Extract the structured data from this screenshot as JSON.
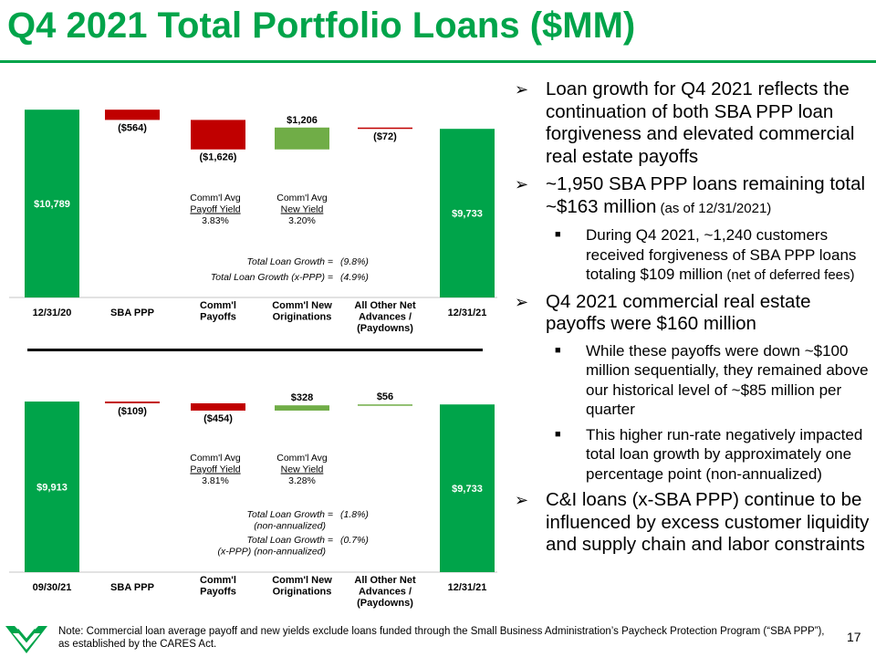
{
  "title": "Q4 2021 Total Portfolio Loans ($MM)",
  "colors": {
    "brand": "#00a44a",
    "total": "#00a44a",
    "increase": "#70ad47",
    "decrease": "#c00000"
  },
  "chart_data": [
    {
      "type": "waterfall",
      "categories": [
        "12/31/20",
        "SBA PPP",
        "Comm'l Payoffs",
        "Comm'l New Originations",
        "All Other Net Advances / (Paydowns)",
        "12/31/21"
      ],
      "values": [
        10789,
        -564,
        -1626,
        1206,
        -72,
        9733
      ],
      "kinds": [
        "total",
        "delta",
        "delta",
        "delta",
        "delta",
        "total"
      ],
      "data_labels": [
        "$10,789",
        "($564)",
        "($1,626)",
        "$1,206",
        "($72)",
        "$9,733"
      ],
      "ylim": [
        440,
        11000
      ],
      "annotations": {
        "payoff_yield": [
          "Comm'l Avg",
          "Payoff Yield",
          "3.83%"
        ],
        "new_yield": [
          "Comm'l Avg",
          "New Yield",
          "3.20%"
        ],
        "growth": [
          {
            "label": "Total Loan Growth =",
            "sub": "",
            "value": "(9.8%)"
          },
          {
            "label": "Total Loan Growth (x-PPP) =",
            "sub": "",
            "value": "(4.9%)"
          }
        ]
      }
    },
    {
      "type": "waterfall",
      "categories": [
        "09/30/21",
        "SBA PPP",
        "Comm'l Payoffs",
        "Comm'l New Originations",
        "All Other Net Advances / (Paydowns)",
        "12/31/21"
      ],
      "values": [
        9913,
        -109,
        -454,
        328,
        56,
        9733
      ],
      "kinds": [
        "total",
        "delta",
        "delta",
        "delta",
        "delta",
        "total"
      ],
      "data_labels": [
        "$9,913",
        "($109)",
        "($454)",
        "$328",
        "$56",
        "$9,733"
      ],
      "ylim": [
        -700,
        10200
      ],
      "annotations": {
        "payoff_yield": [
          "Comm'l Avg",
          "Payoff Yield",
          "3.81%"
        ],
        "new_yield": [
          "Comm'l Avg",
          "New Yield",
          "3.28%"
        ],
        "growth": [
          {
            "label": "Total Loan Growth =",
            "sub": "(non-annualized)",
            "value": "(1.8%)"
          },
          {
            "label": "Total Loan Growth =",
            "sub": "(x-PPP) (non-annualized)",
            "value": "(0.7%)"
          }
        ]
      }
    }
  ],
  "bullets": [
    {
      "text": "Loan growth for Q4 2021 reflects the continuation of both SBA PPP loan forgiveness and elevated commercial real estate payoffs",
      "small": ""
    },
    {
      "text": "~1,950 SBA PPP loans remaining total ~$163 million",
      "small": " (as of 12/31/2021)",
      "subs": [
        {
          "text": "During Q4 2021, ~1,240 customers received forgiveness of SBA PPP loans totaling $109 million",
          "small": " (net of deferred fees)"
        }
      ]
    },
    {
      "text": "Q4 2021 commercial real estate payoffs were $160 million",
      "small": "",
      "subs": [
        {
          "text": "While these payoffs were down ~$100 million sequentially, they remained above our historical level of ~$85 million per quarter",
          "small": ""
        },
        {
          "text": "This higher run-rate negatively impacted total loan growth by approximately one percentage point (non-annualized)",
          "small": ""
        }
      ]
    },
    {
      "text": "C&I loans (x-SBA PPP) continue to be influenced by excess customer liquidity and supply chain and labor constraints",
      "small": ""
    }
  ],
  "note": "Note: Commercial loan average payoff and new yields exclude loans funded through the Small Business Administration’s Paycheck Protection Program (“SBA PPP”), as established by the CARES Act.",
  "page_number": "17"
}
